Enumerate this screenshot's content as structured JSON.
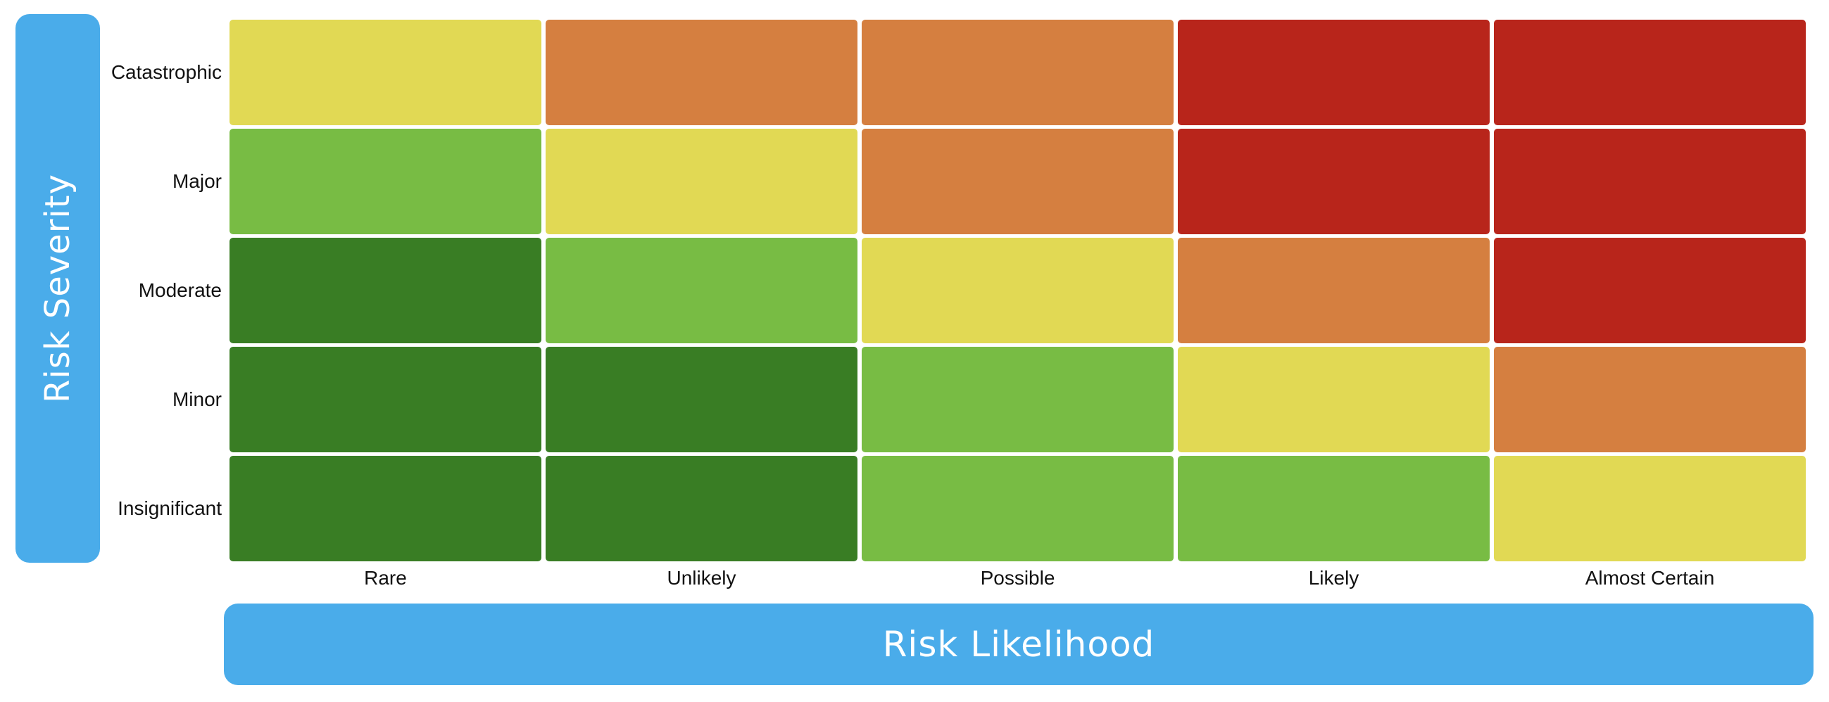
{
  "chart_data": {
    "type": "heatmap",
    "title": "",
    "xlabel": "Risk Likelihood",
    "ylabel": "Risk Severity",
    "x_categories": [
      "Rare",
      "Unlikely",
      "Possible",
      "Likely",
      "Almost Certain"
    ],
    "y_categories": [
      "Catastrophic",
      "Major",
      "Moderate",
      "Minor",
      "Insignificant"
    ],
    "levels": {
      "dark-green": "#397d24",
      "green": "#78bc44",
      "yellow": "#e1d954",
      "orange": "#d57f40",
      "red": "#b8251b"
    },
    "cells": [
      [
        "yellow",
        "orange",
        "orange",
        "red",
        "red"
      ],
      [
        "green",
        "yellow",
        "orange",
        "red",
        "red"
      ],
      [
        "dark-green",
        "green",
        "yellow",
        "orange",
        "red"
      ],
      [
        "dark-green",
        "dark-green",
        "green",
        "yellow",
        "orange"
      ],
      [
        "dark-green",
        "dark-green",
        "green",
        "green",
        "yellow"
      ]
    ]
  }
}
